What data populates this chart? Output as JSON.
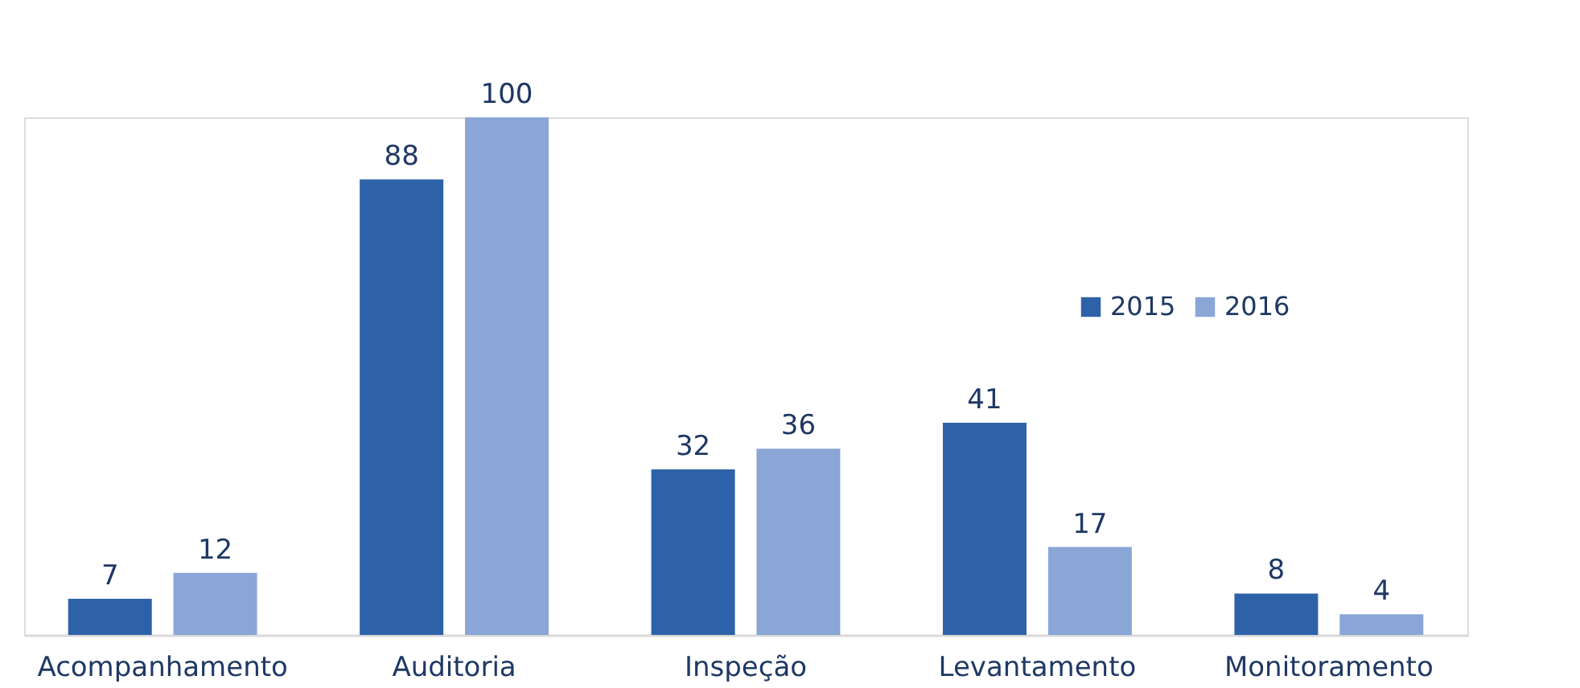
{
  "chart_data": {
    "type": "bar",
    "categories": [
      "Acompanhamento",
      "Auditoria",
      "Inspeção",
      "Levantamento",
      "Monitoramento"
    ],
    "series": [
      {
        "name": "2015",
        "color": "#2e62a8",
        "values": [
          7,
          88,
          32,
          41,
          8
        ]
      },
      {
        "name": "2016",
        "color": "#8aa6d6",
        "values": [
          12,
          100,
          36,
          17,
          4
        ]
      }
    ],
    "data_labels": true,
    "legend": "top right",
    "grid": false
  }
}
